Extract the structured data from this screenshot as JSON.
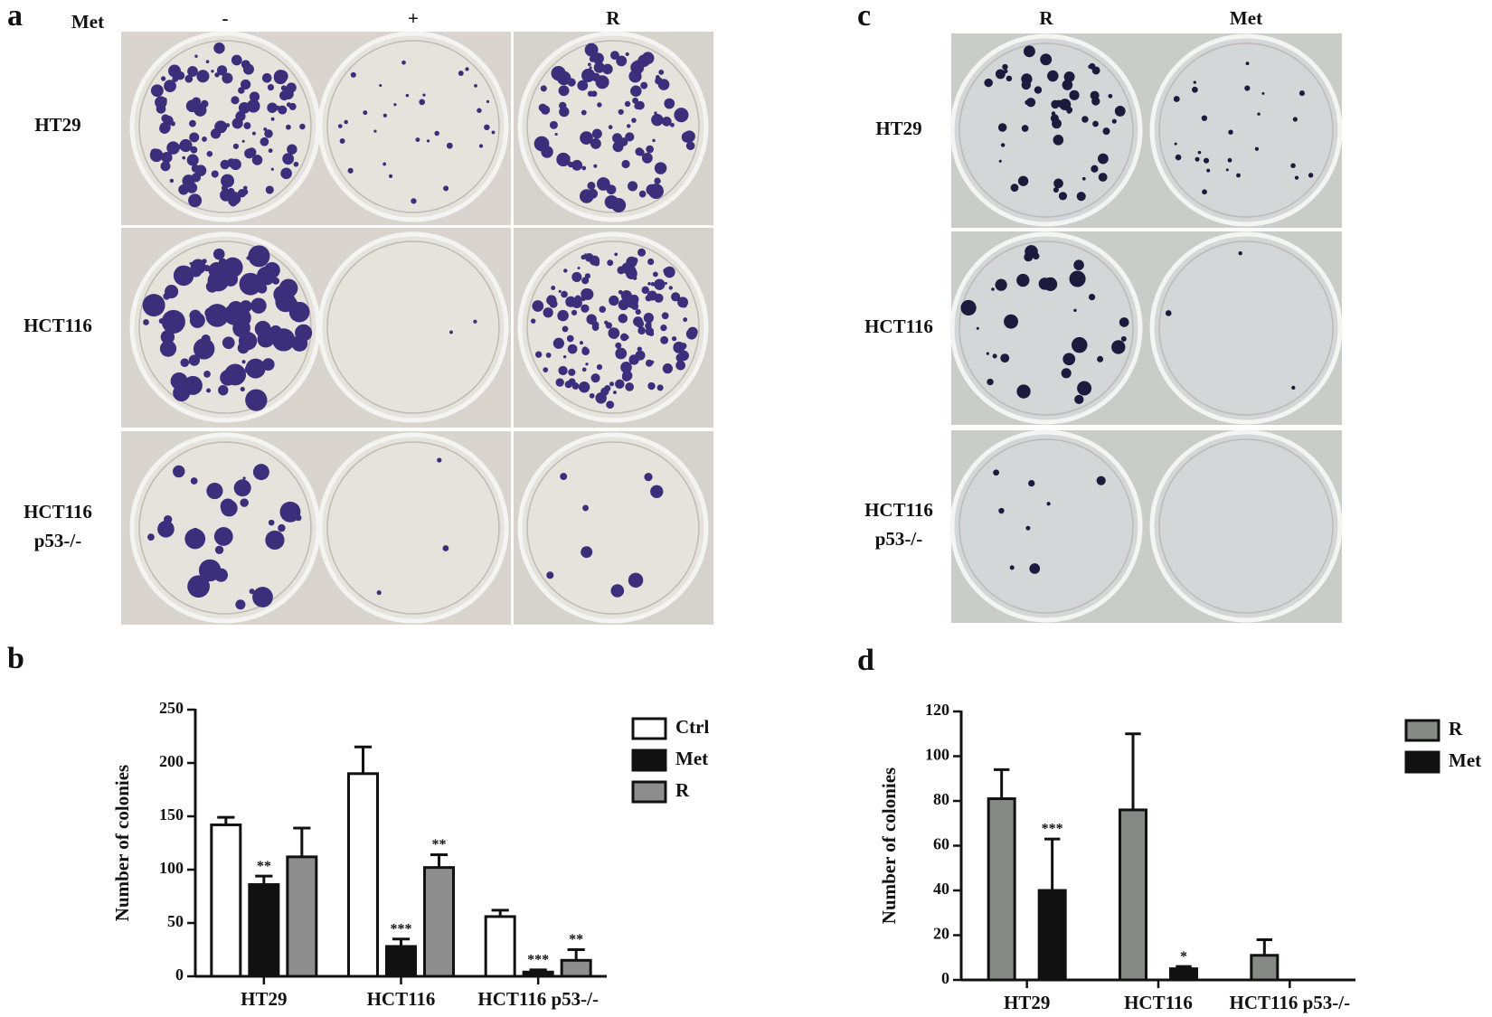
{
  "panel_a": {
    "label": "a",
    "treatment_label": "Met",
    "columns": [
      "-",
      "+",
      "R"
    ],
    "rows": [
      [
        "HT29"
      ],
      [
        "HCT116"
      ],
      [
        "HCT116",
        "p53-/-"
      ]
    ]
  },
  "panel_c": {
    "label": "c",
    "columns": [
      "R",
      "Met"
    ],
    "rows": [
      [
        "HT29"
      ],
      [
        "HCT116"
      ],
      [
        "HCT116",
        "p53-/-"
      ]
    ]
  },
  "chart_data": [
    {
      "type": "bar",
      "label": "b",
      "y_label": "Number of colonies",
      "categories": [
        "HT29",
        "HCT116",
        "HCT116 p53-/-"
      ],
      "series": [
        {
          "name": "Ctrl",
          "color": "#ffffff",
          "values": [
            142,
            190,
            56
          ],
          "errors": [
            7,
            25,
            6
          ]
        },
        {
          "name": "Met",
          "color": "#111111",
          "values": [
            86,
            28,
            4
          ],
          "errors": [
            8,
            7,
            2
          ],
          "significance": [
            "**",
            "***",
            "***"
          ]
        },
        {
          "name": "R",
          "color": "#8e8e8e",
          "values": [
            112,
            102,
            15
          ],
          "errors": [
            27,
            12,
            10
          ],
          "significance": [
            null,
            "**",
            "**"
          ]
        }
      ],
      "ylim": [
        0,
        250
      ],
      "yticks": [
        0,
        50,
        100,
        150,
        200,
        250
      ],
      "legend": "right"
    },
    {
      "type": "bar",
      "label": "d",
      "y_label": "Number of colonies",
      "categories": [
        "HT29",
        "HCT116",
        "HCT116 p53-/-"
      ],
      "series": [
        {
          "name": "R",
          "color": "#858a85",
          "values": [
            81,
            76,
            11
          ],
          "errors": [
            13,
            34,
            7
          ]
        },
        {
          "name": "Met",
          "color": "#111111",
          "values": [
            40,
            5,
            0
          ],
          "errors": [
            23,
            1,
            0
          ],
          "significance": [
            "***",
            "*",
            null
          ]
        }
      ],
      "ylim": [
        0,
        120
      ],
      "yticks": [
        0,
        20,
        40,
        60,
        80,
        100,
        120
      ],
      "legend": "right"
    }
  ]
}
